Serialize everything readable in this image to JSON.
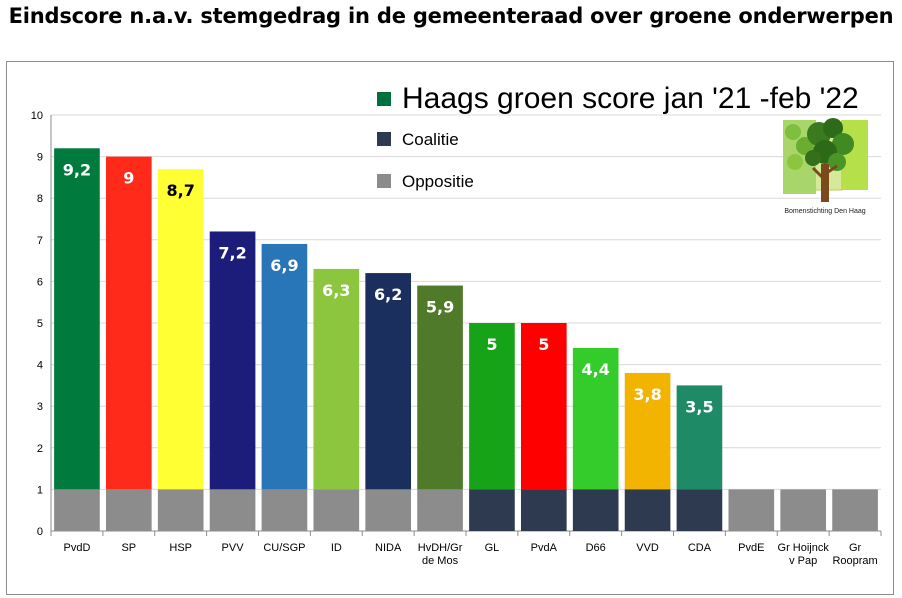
{
  "title": "Eindscore n.a.v. stemgedrag in de gemeenteraad over groene onderwerpen",
  "chart_data": {
    "type": "bar",
    "categories": [
      [
        "PvdD"
      ],
      [
        "SP"
      ],
      [
        "HSP"
      ],
      [
        "PVV"
      ],
      [
        "CU/SGP"
      ],
      [
        "ID"
      ],
      [
        "NIDA"
      ],
      [
        "HvDH/Gr",
        "de Mos"
      ],
      [
        "GL"
      ],
      [
        "PvdA"
      ],
      [
        "D66"
      ],
      [
        "VVD"
      ],
      [
        "CDA"
      ],
      [
        "PvdE"
      ],
      [
        "Gr Hoijnck",
        "v Pap"
      ],
      [
        "Gr",
        "Roopram"
      ]
    ],
    "values": [
      9.2,
      9,
      8.7,
      7.2,
      6.9,
      6.3,
      6.2,
      5.9,
      5,
      5,
      4.4,
      3.8,
      3.5,
      1,
      1,
      1
    ],
    "value_labels": [
      "9,2",
      "9",
      "8,7",
      "7,2",
      "6,9",
      "6,3",
      "6,2",
      "5,9",
      "5",
      "5",
      "4,4",
      "3,8",
      "3,5",
      "",
      "",
      ""
    ],
    "bar_colors": [
      "#007a3d",
      "#ff2a1a",
      "#ffff33",
      "#1c1c7a",
      "#2875b8",
      "#8cc63f",
      "#1b2f5e",
      "#4f7a2a",
      "#17a317",
      "#ff0000",
      "#33cc2a",
      "#f2b400",
      "#1f8a66",
      "#8c8c8c",
      "#8c8c8c",
      "#8c8c8c"
    ],
    "label_colors": [
      "#ffffff",
      "#ffffff",
      "#000000",
      "#ffffff",
      "#ffffff",
      "#ffffff",
      "#ffffff",
      "#ffffff",
      "#ffffff",
      "#ffffff",
      "#ffffff",
      "#ffffff",
      "#ffffff",
      "#ffffff",
      "#ffffff",
      "#ffffff"
    ],
    "base_value": 1,
    "base_groups": [
      "Oppositie",
      "Oppositie",
      "Oppositie",
      "Oppositie",
      "Oppositie",
      "Oppositie",
      "Oppositie",
      "Oppositie",
      "Coalitie",
      "Coalitie",
      "Coalitie",
      "Coalitie",
      "Coalitie",
      "Oppositie",
      "Oppositie",
      "Oppositie"
    ],
    "base_colors": {
      "Oppositie": "#8c8c8c",
      "Coalitie": "#2e3a4f"
    },
    "ylim": [
      0,
      10
    ],
    "yticks": [
      0,
      1,
      2,
      3,
      4,
      5,
      6,
      7,
      8,
      9,
      10
    ],
    "grid": true,
    "legend_position": "top-right",
    "legend": [
      {
        "label": "Haags groen score jan '21 -feb '22",
        "color": "#00703c"
      },
      {
        "label": "Coalitie",
        "color": "#2e3a4f"
      },
      {
        "label": "Oppositie",
        "color": "#8c8c8c"
      }
    ]
  },
  "logo": {
    "caption": "Bomenstichting Den Haag",
    "icon": "tree-logo-icon"
  }
}
